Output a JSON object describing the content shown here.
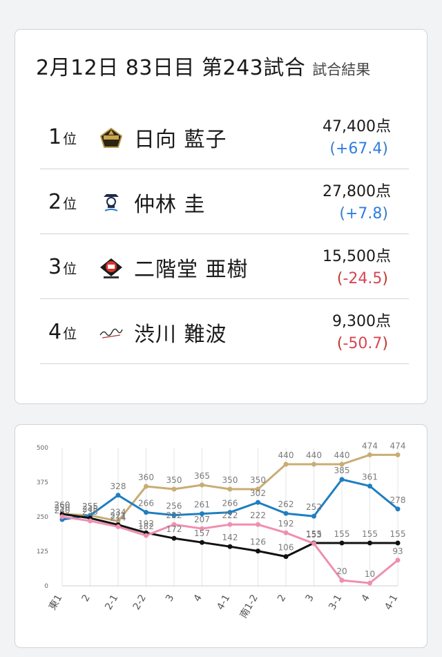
{
  "header": {
    "title": "2月12日 83日目 第243試合",
    "subtitle": "試合結果"
  },
  "results": [
    {
      "rank": "1",
      "rank_unit": "位",
      "name": "日向 藍子",
      "score": "47,400点",
      "delta": "+67.4",
      "sign": "pos",
      "logo": "shield-gold-icon"
    },
    {
      "rank": "2",
      "rank_unit": "位",
      "name": "仲林 圭",
      "score": "27,800点",
      "delta": "+7.8",
      "sign": "pos",
      "logo": "pirates-skull-icon"
    },
    {
      "rank": "3",
      "rank_unit": "位",
      "name": "二階堂 亜樹",
      "score": "15,500点",
      "delta": "-24.5",
      "sign": "neg",
      "logo": "ex-fujin-icon"
    },
    {
      "rank": "4",
      "rank_unit": "位",
      "name": "渋川 難波",
      "score": "9,300点",
      "delta": "-50.7",
      "sign": "neg",
      "logo": "signature-script-icon"
    }
  ],
  "chart_data": {
    "type": "line",
    "categories": [
      "東1",
      "2",
      "2-1",
      "2-2",
      "3",
      "4",
      "4-1",
      "南1-2",
      "2",
      "3",
      "3-1",
      "4",
      "4-1"
    ],
    "ylim": [
      0,
      500
    ],
    "yticks": [
      "0",
      "125",
      "250",
      "375",
      "500"
    ],
    "grid": true,
    "series": [
      {
        "color": "#c8ad73",
        "values": [
          260,
          255,
          234,
          360,
          350,
          365,
          350,
          350,
          440,
          440,
          440,
          474,
          474
        ]
      },
      {
        "color": "#1f7ec0",
        "values": [
          240,
          255,
          328,
          266,
          256,
          261,
          266,
          302,
          262,
          252,
          385,
          361,
          278
        ]
      },
      {
        "color": "#111111",
        "values": [
          260,
          245,
          221,
          192,
          172,
          157,
          142,
          126,
          106,
          155,
          155,
          155,
          155
        ]
      },
      {
        "color": "#ef8fb0",
        "values": [
          250,
          235,
          214,
          182,
          222,
          207,
          222,
          222,
          192,
          153,
          20,
          10,
          93
        ]
      }
    ]
  }
}
